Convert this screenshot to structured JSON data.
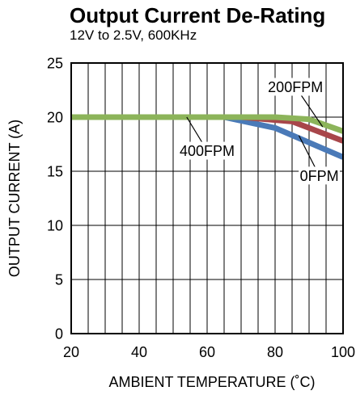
{
  "chart_data": {
    "type": "line",
    "title": "Output Current De-Rating",
    "subtitle": "12V to 2.5V, 600KHz",
    "xlabel": "AMBIENT TEMPERATURE (˚C)",
    "ylabel": "OUTPUT CURRENT (A)",
    "xlim": [
      20,
      100
    ],
    "ylim": [
      0,
      25
    ],
    "x_ticks": [
      20,
      40,
      60,
      80,
      100
    ],
    "y_ticks": [
      0,
      5,
      10,
      15,
      20,
      25
    ],
    "x_grid_step": 5,
    "y_grid_step": 5,
    "grid": true,
    "series": [
      {
        "name": "0FPM",
        "color": "#4a7ab8",
        "x": [
          20,
          65,
          80,
          100
        ],
        "y": [
          20,
          20,
          19,
          16.3
        ]
      },
      {
        "name": "200FPM",
        "color": "#a8464a",
        "x": [
          20,
          70,
          85,
          100
        ],
        "y": [
          20,
          20,
          19.6,
          17.8
        ]
      },
      {
        "name": "400FPM",
        "color": "#8cb45a",
        "x": [
          20,
          80,
          90,
          100
        ],
        "y": [
          20,
          20,
          19.8,
          18.7
        ]
      }
    ],
    "annotations": [
      {
        "text": "200FPM",
        "series": "200FPM",
        "label_x": 86,
        "label_y": 22.8,
        "point_x": 94,
        "point_y": 19.1
      },
      {
        "text": "400FPM",
        "series": "400FPM",
        "label_x": 60,
        "label_y": 16.9,
        "point_x": 54,
        "point_y": 20
      },
      {
        "text": "0FPM",
        "series": "0FPM",
        "label_x": 93,
        "label_y": 14.6,
        "point_x": 87,
        "point_y": 18.3
      }
    ]
  }
}
